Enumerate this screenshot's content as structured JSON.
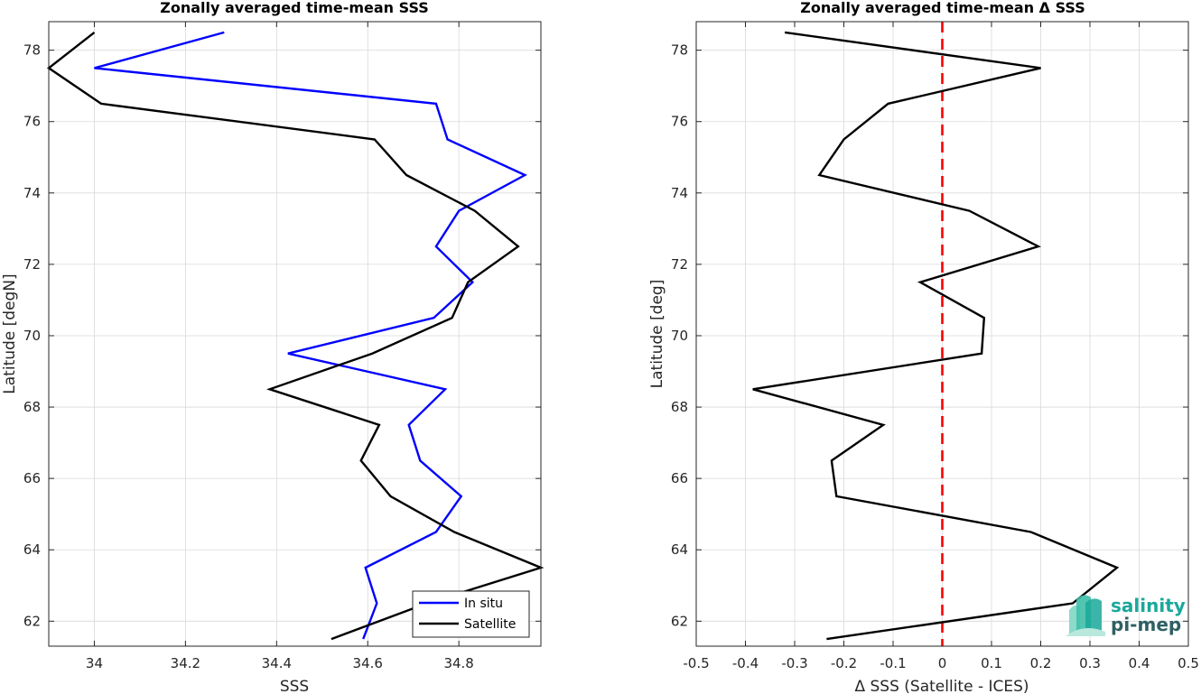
{
  "chart_data": [
    {
      "type": "line",
      "title": "Zonally averaged time-mean SSS",
      "xlabel": "SSS",
      "ylabel": "Latitude [degN]",
      "xlim": [
        33.9,
        34.98
      ],
      "ylim": [
        61.3,
        78.8
      ],
      "xticks": [
        34,
        34.2,
        34.4,
        34.6,
        34.8
      ],
      "xtick_labels": [
        "34",
        "34.2",
        "34.4",
        "34.6",
        "34.8"
      ],
      "yticks": [
        62,
        64,
        66,
        68,
        70,
        72,
        74,
        76,
        78
      ],
      "ytick_labels": [
        "62",
        "64",
        "66",
        "68",
        "70",
        "72",
        "74",
        "76",
        "78"
      ],
      "grid": true,
      "legend_position": "bottom-right",
      "series": [
        {
          "name": "In situ",
          "color": "#0000ff",
          "x": [
            34.59,
            34.62,
            34.595,
            34.75,
            34.805,
            34.715,
            34.69,
            34.77,
            34.425,
            34.745,
            34.83,
            34.75,
            34.8,
            34.945,
            34.775,
            34.75,
            34.0,
            34.285
          ],
          "y": [
            61.5,
            62.5,
            63.5,
            64.5,
            65.5,
            66.5,
            67.5,
            68.5,
            69.5,
            70.5,
            71.5,
            72.5,
            73.5,
            74.5,
            75.5,
            76.5,
            77.5,
            78.5
          ]
        },
        {
          "name": "Satellite",
          "color": "#000000",
          "x": [
            34.52,
            34.73,
            34.98,
            34.79,
            34.65,
            34.585,
            34.625,
            34.385,
            34.61,
            34.785,
            34.82,
            34.93,
            34.835,
            34.685,
            34.615,
            34.015,
            33.9,
            34.0
          ],
          "y": [
            61.5,
            62.5,
            63.5,
            64.5,
            65.5,
            66.5,
            67.5,
            68.5,
            69.5,
            70.5,
            71.5,
            72.5,
            73.5,
            74.5,
            75.5,
            76.5,
            77.5,
            78.5
          ]
        }
      ]
    },
    {
      "type": "line",
      "title": "Zonally averaged time-mean Δ SSS",
      "xlabel": "Δ SSS (Satellite - ICES)",
      "ylabel": "Latitude [deg]",
      "xlim": [
        -0.5,
        0.5
      ],
      "ylim": [
        61.3,
        78.8
      ],
      "xticks": [
        -0.5,
        -0.4,
        -0.3,
        -0.2,
        -0.1,
        0,
        0.1,
        0.2,
        0.3,
        0.4,
        0.5
      ],
      "xtick_labels": [
        "-0.5",
        "-0.4",
        "-0.3",
        "-0.2",
        "-0.1",
        "0",
        "0.1",
        "0.2",
        "0.3",
        "0.4",
        "0.5"
      ],
      "yticks": [
        62,
        64,
        66,
        68,
        70,
        72,
        74,
        76,
        78
      ],
      "ytick_labels": [
        "62",
        "64",
        "66",
        "68",
        "70",
        "72",
        "74",
        "76",
        "78"
      ],
      "grid": true,
      "reference_line": {
        "x": 0,
        "color": "#ff0000",
        "style": "dashed"
      },
      "series": [
        {
          "color": "#000000",
          "x": [
            -0.235,
            0.265,
            0.355,
            0.18,
            -0.215,
            -0.225,
            -0.12,
            -0.385,
            0.08,
            0.085,
            -0.045,
            0.195,
            0.055,
            -0.25,
            -0.2,
            -0.11,
            0.2,
            -0.32
          ],
          "y": [
            61.5,
            62.5,
            63.5,
            64.5,
            65.5,
            66.5,
            67.5,
            68.5,
            69.5,
            70.5,
            71.5,
            72.5,
            73.5,
            74.5,
            75.5,
            76.5,
            77.5,
            78.5
          ]
        }
      ]
    }
  ],
  "logo": {
    "line1": "salinity",
    "line2": "pi-mep",
    "color_primary": "#1aa89a",
    "color_dark": "#2e5f63"
  }
}
